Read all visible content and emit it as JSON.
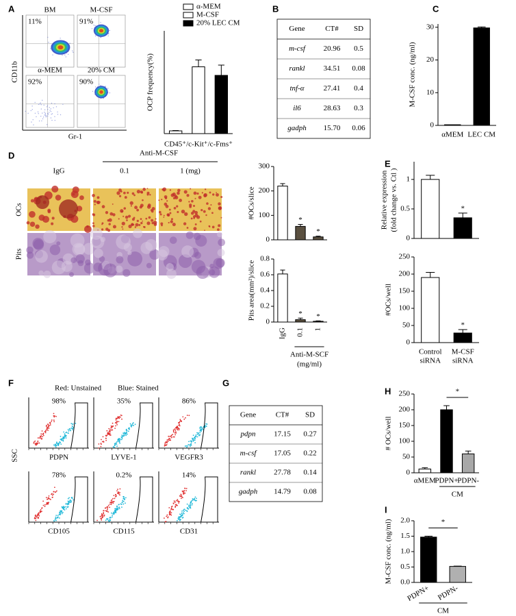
{
  "panel_labels": [
    "A",
    "B",
    "C",
    "D",
    "E",
    "F",
    "G",
    "H",
    "I"
  ],
  "flow_a": {
    "y_axis": "CD11b",
    "x_axis": "Gr-1",
    "plots": [
      {
        "title": "BM",
        "percent": "11%"
      },
      {
        "title": "M-CSF",
        "percent": "91%"
      },
      {
        "title": "α-MEM",
        "percent": "92%"
      },
      {
        "title": "20% CM",
        "percent": "90%"
      }
    ]
  },
  "table_b": {
    "header": [
      "Gene",
      "CT#",
      "SD"
    ],
    "rows": [
      [
        "m-csf",
        "20.96",
        "0.5"
      ],
      [
        "rankl",
        "34.51",
        "0.08"
      ],
      [
        "tnf-α",
        "27.41",
        "0.4"
      ],
      [
        "il6",
        "28.63",
        "0.3"
      ],
      [
        "gadph",
        "15.70",
        "0.06"
      ]
    ]
  },
  "images_d": {
    "group": "Anti-M-CSF",
    "columns": [
      "IgG",
      "0.1",
      "1 (mg)"
    ],
    "rows": [
      "OCs",
      "Pits"
    ]
  },
  "flow_f": {
    "legend": [
      "Red: Unstained",
      "Blue: Stained"
    ],
    "y_axis": "SSC",
    "plots": [
      {
        "marker": "PDPN",
        "percent": "98%"
      },
      {
        "marker": "LYVE-1",
        "percent": "35%"
      },
      {
        "marker": "VEGFR3",
        "percent": "86%"
      },
      {
        "marker": "CD105",
        "percent": "78%"
      },
      {
        "marker": "CD115",
        "percent": "0.2%"
      },
      {
        "marker": "CD31",
        "percent": "14%"
      }
    ]
  },
  "table_g": {
    "header": [
      "Gene",
      "CT#",
      "SD"
    ],
    "rows": [
      [
        "pdpn",
        "17.15",
        "0.27"
      ],
      [
        "m-csf",
        "17.05",
        "0.22"
      ],
      [
        "rankl",
        "27.78",
        "0.14"
      ],
      [
        "gadph",
        "14.79",
        "0.08"
      ]
    ]
  },
  "chart_data": [
    {
      "type": "bar",
      "ylabel": "OCP frequency(%)",
      "xlabel": "CD45⁺/c-Kit⁺/c-Fms⁺",
      "series": [
        {
          "name": "α-MEM",
          "color": "#ffffff",
          "values": [
            0.8
          ],
          "errors": [
            0.1
          ]
        },
        {
          "name": "M-CSF",
          "color": "#ffffff",
          "values": [
            19.5
          ],
          "errors": [
            2
          ]
        },
        {
          "name": "20% LEC CM",
          "color": "#000000",
          "values": [
            17
          ],
          "errors": [
            3
          ]
        }
      ],
      "ylim": [
        0,
        30
      ]
    },
    {
      "type": "bar",
      "ylabel": "M-CSF  conc. (ng/ml)",
      "categories": [
        "αMEM",
        "LEC  CM"
      ],
      "values": [
        0.2,
        29.8
      ],
      "errors": [
        null,
        0.3
      ],
      "colors": [
        "#000000",
        "#000000"
      ],
      "ylim": [
        0,
        31
      ],
      "yticks": [
        0,
        10,
        20,
        30
      ]
    },
    {
      "type": "bar",
      "ylabel": "#OCs/slice",
      "values": [
        220,
        55,
        12
      ],
      "errors": [
        10,
        8,
        3
      ],
      "colors": [
        "#ffffff",
        "#5a5040",
        "#5a5040"
      ],
      "markers": [
        null,
        "*",
        "*"
      ],
      "ylim": [
        0,
        300
      ],
      "yticks": [
        0,
        100,
        200,
        300
      ]
    },
    {
      "type": "bar",
      "ylabel": "Pits area(mm²)/slice",
      "categories": [
        "IgG",
        "0.1",
        "1"
      ],
      "values": [
        0.61,
        0.03,
        0.01
      ],
      "errors": [
        0.05,
        0.02,
        0.005
      ],
      "colors": [
        "#ffffff",
        "#5a5040",
        "#5a5040"
      ],
      "markers": [
        null,
        "*",
        "*"
      ],
      "group_label": [
        "Anti-M-SCF",
        "(mg/ml)"
      ],
      "ylim": [
        0,
        0.8
      ],
      "yticks": [
        0,
        0.2,
        0.4,
        0.6,
        0.8
      ]
    },
    {
      "type": "bar",
      "ylabel": [
        "Relative expression",
        "(fold change vs. Ctl )"
      ],
      "values": [
        1.0,
        0.35
      ],
      "errors": [
        0.07,
        0.08
      ],
      "colors": [
        "#ffffff",
        "#000000"
      ],
      "markers": [
        null,
        "*"
      ],
      "ylim": [
        0,
        1.3
      ],
      "yticks": [
        0,
        0.5,
        1
      ]
    },
    {
      "type": "bar",
      "ylabel": "#OCs/well",
      "categories": [
        [
          "Control",
          "siRNA"
        ],
        [
          "M-CSF",
          "siRNA"
        ]
      ],
      "values": [
        190,
        28
      ],
      "errors": [
        15,
        10
      ],
      "colors": [
        "#ffffff",
        "#000000"
      ],
      "markers": [
        null,
        "*"
      ],
      "ylim": [
        0,
        250
      ],
      "yticks": [
        0,
        50,
        100,
        150,
        200,
        250
      ]
    },
    {
      "type": "bar",
      "ylabel": "# OCs/well",
      "categories": [
        "αMEM",
        "PDPN+",
        "PDPN-"
      ],
      "values": [
        12,
        200,
        60
      ],
      "errors": [
        4,
        13,
        9
      ],
      "colors": [
        "#ffffff",
        "#000000",
        "#a8a8a8"
      ],
      "significance": "*",
      "group_label": [
        "CM"
      ],
      "ylim": [
        0,
        250
      ],
      "yticks": [
        0,
        50,
        100,
        150,
        200,
        250
      ]
    },
    {
      "type": "bar",
      "ylabel": "M-CSF  conc. (ng/ml)",
      "categories": [
        "PDPN+",
        "PDPN-"
      ],
      "values": [
        1.47,
        0.52
      ],
      "errors": [
        0.03,
        0.01
      ],
      "colors": [
        "#000000",
        "#b0b0b0"
      ],
      "significance": "*",
      "group_label": [
        "CM"
      ],
      "ylim": [
        0,
        2
      ],
      "yticks": [
        {
          "value": 0,
          "label": "0.0"
        },
        {
          "value": 0.5,
          "label": "0.5"
        },
        {
          "value": 1,
          "label": "1.0"
        },
        {
          "value": 1.5,
          "label": "1.5"
        },
        {
          "value": 2,
          "label": "2.0"
        }
      ]
    }
  ]
}
